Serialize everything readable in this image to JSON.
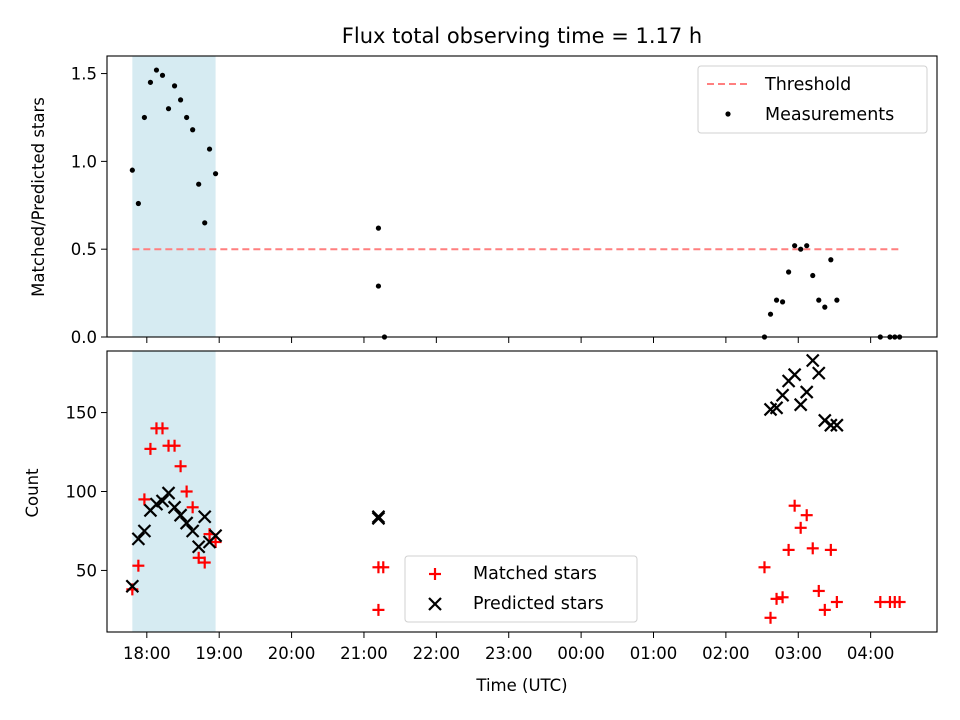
{
  "chart_data": [
    {
      "type": "scatter",
      "title": "Flux total observing time = 1.17 h",
      "xlabel": "",
      "ylabel": "Matched/Predicted stars",
      "ylim": [
        0,
        1.6
      ],
      "yticks": [
        "0.0",
        "0.5",
        "1.0",
        "1.5"
      ],
      "xlim": [
        "17:27",
        "04:55"
      ],
      "highlight_span": [
        "17:48",
        "18:57"
      ],
      "highlight_color": "#add8e6",
      "legend_position": "upper right",
      "threshold": {
        "name": "Threshold",
        "y": 0.5,
        "x_start": "17:48",
        "x_end": "04:25",
        "color": "#ff7f7f",
        "style": "dashed"
      },
      "series": [
        {
          "name": "Measurements",
          "marker": "dot",
          "color": "#000000",
          "points": [
            {
              "x": "17:48",
              "y": 0.95
            },
            {
              "x": "17:53",
              "y": 0.76
            },
            {
              "x": "17:58",
              "y": 1.25
            },
            {
              "x": "18:03",
              "y": 1.45
            },
            {
              "x": "18:08",
              "y": 1.52
            },
            {
              "x": "18:13",
              "y": 1.49
            },
            {
              "x": "18:18",
              "y": 1.3
            },
            {
              "x": "18:23",
              "y": 1.43
            },
            {
              "x": "18:28",
              "y": 1.35
            },
            {
              "x": "18:33",
              "y": 1.25
            },
            {
              "x": "18:38",
              "y": 1.18
            },
            {
              "x": "18:43",
              "y": 0.87
            },
            {
              "x": "18:48",
              "y": 0.65
            },
            {
              "x": "18:52",
              "y": 1.07
            },
            {
              "x": "18:57",
              "y": 0.93
            },
            {
              "x": "21:12",
              "y": 0.62
            },
            {
              "x": "21:12",
              "y": 0.29
            },
            {
              "x": "21:17",
              "y": 0.0
            },
            {
              "x": "02:32",
              "y": 0.0
            },
            {
              "x": "02:37",
              "y": 0.13
            },
            {
              "x": "02:42",
              "y": 0.21
            },
            {
              "x": "02:47",
              "y": 0.2
            },
            {
              "x": "02:52",
              "y": 0.37
            },
            {
              "x": "02:57",
              "y": 0.52
            },
            {
              "x": "03:02",
              "y": 0.5
            },
            {
              "x": "03:07",
              "y": 0.52
            },
            {
              "x": "03:12",
              "y": 0.35
            },
            {
              "x": "03:17",
              "y": 0.21
            },
            {
              "x": "03:22",
              "y": 0.17
            },
            {
              "x": "03:27",
              "y": 0.44
            },
            {
              "x": "03:32",
              "y": 0.21
            },
            {
              "x": "04:08",
              "y": 0.0
            },
            {
              "x": "04:16",
              "y": 0.0
            },
            {
              "x": "04:20",
              "y": 0.0
            },
            {
              "x": "04:24",
              "y": 0.0
            }
          ]
        }
      ]
    },
    {
      "type": "scatter",
      "title": "",
      "xlabel": "Time (UTC)",
      "ylabel": "Count",
      "ylim": [
        11,
        189
      ],
      "yticks": [
        "50",
        "100",
        "150"
      ],
      "xticks": [
        "18:00",
        "19:00",
        "20:00",
        "21:00",
        "22:00",
        "23:00",
        "00:00",
        "01:00",
        "02:00",
        "03:00",
        "04:00"
      ],
      "xlim": [
        "17:27",
        "04:55"
      ],
      "highlight_span": [
        "17:48",
        "18:57"
      ],
      "highlight_color": "#add8e6",
      "legend_position": "lower center",
      "series": [
        {
          "name": "Matched stars",
          "marker": "plus",
          "color": "#ff0000",
          "points": [
            {
              "x": "17:48",
              "y": 38
            },
            {
              "x": "17:53",
              "y": 53
            },
            {
              "x": "17:58",
              "y": 95
            },
            {
              "x": "18:03",
              "y": 127
            },
            {
              "x": "18:08",
              "y": 140
            },
            {
              "x": "18:13",
              "y": 140
            },
            {
              "x": "18:18",
              "y": 129
            },
            {
              "x": "18:23",
              "y": 129
            },
            {
              "x": "18:28",
              "y": 116
            },
            {
              "x": "18:33",
              "y": 100
            },
            {
              "x": "18:38",
              "y": 90
            },
            {
              "x": "18:43",
              "y": 58
            },
            {
              "x": "18:48",
              "y": 55
            },
            {
              "x": "18:52",
              "y": 73
            },
            {
              "x": "18:57",
              "y": 68
            },
            {
              "x": "21:12",
              "y": 52
            },
            {
              "x": "21:16",
              "y": 52
            },
            {
              "x": "21:12",
              "y": 25
            },
            {
              "x": "02:32",
              "y": 52
            },
            {
              "x": "02:37",
              "y": 20
            },
            {
              "x": "02:42",
              "y": 32
            },
            {
              "x": "02:47",
              "y": 33
            },
            {
              "x": "02:52",
              "y": 63
            },
            {
              "x": "02:57",
              "y": 91
            },
            {
              "x": "03:02",
              "y": 77
            },
            {
              "x": "03:07",
              "y": 85
            },
            {
              "x": "03:12",
              "y": 64
            },
            {
              "x": "03:17",
              "y": 37
            },
            {
              "x": "03:22",
              "y": 25
            },
            {
              "x": "03:27",
              "y": 63
            },
            {
              "x": "03:32",
              "y": 30
            },
            {
              "x": "04:08",
              "y": 30
            },
            {
              "x": "04:16",
              "y": 30
            },
            {
              "x": "04:20",
              "y": 30
            },
            {
              "x": "04:24",
              "y": 30
            }
          ]
        },
        {
          "name": "Predicted stars",
          "marker": "x",
          "color": "#000000",
          "points": [
            {
              "x": "17:48",
              "y": 40
            },
            {
              "x": "17:53",
              "y": 70
            },
            {
              "x": "17:58",
              "y": 75
            },
            {
              "x": "18:03",
              "y": 88
            },
            {
              "x": "18:08",
              "y": 92
            },
            {
              "x": "18:13",
              "y": 94
            },
            {
              "x": "18:18",
              "y": 99
            },
            {
              "x": "18:23",
              "y": 90
            },
            {
              "x": "18:28",
              "y": 85
            },
            {
              "x": "18:33",
              "y": 80
            },
            {
              "x": "18:38",
              "y": 75
            },
            {
              "x": "18:43",
              "y": 65
            },
            {
              "x": "18:48",
              "y": 84
            },
            {
              "x": "18:52",
              "y": 68
            },
            {
              "x": "18:57",
              "y": 72
            },
            {
              "x": "21:12",
              "y": 83
            },
            {
              "x": "21:12",
              "y": 84
            },
            {
              "x": "02:37",
              "y": 152
            },
            {
              "x": "02:42",
              "y": 153
            },
            {
              "x": "02:47",
              "y": 161
            },
            {
              "x": "02:52",
              "y": 170
            },
            {
              "x": "02:57",
              "y": 174
            },
            {
              "x": "03:02",
              "y": 155
            },
            {
              "x": "03:07",
              "y": 163
            },
            {
              "x": "03:12",
              "y": 183
            },
            {
              "x": "03:17",
              "y": 175
            },
            {
              "x": "03:22",
              "y": 145
            },
            {
              "x": "03:27",
              "y": 142
            },
            {
              "x": "03:32",
              "y": 142
            }
          ]
        }
      ]
    }
  ]
}
